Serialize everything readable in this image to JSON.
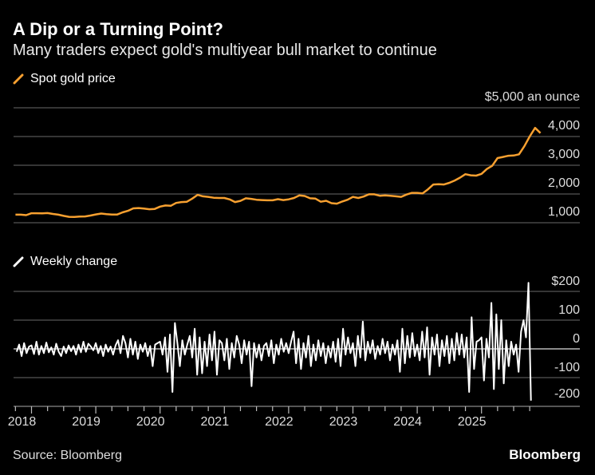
{
  "title": "A Dip or a Turning Point?",
  "subtitle": "Many traders expect gold's multiyear bull market to continue",
  "source": "Source: Bloomberg",
  "brand": "Bloomberg",
  "colors": {
    "gold": "#f7a030",
    "change": "#ffffff",
    "grid": "#555555",
    "background": "#000000"
  },
  "chart_data": [
    {
      "type": "line",
      "legend": "Spot gold price",
      "unit_label": "$5,000 an ounce",
      "ylim": [
        1000,
        5000
      ],
      "yticks": [
        1000,
        2000,
        3000,
        4000,
        5000
      ],
      "ytick_labels": [
        "1,000",
        "2,000",
        "3,000",
        "4,000",
        "$5,000 an ounce"
      ],
      "grid": true,
      "series": [
        {
          "name": "Spot gold price",
          "values_by_year_monthly": {
            "2017": [
              1280,
              1280,
              1265
            ],
            "2018": [
              1330,
              1330,
              1325,
              1335,
              1305,
              1280,
              1240,
              1205,
              1200,
              1215,
              1220,
              1250
            ],
            "2019": [
              1290,
              1320,
              1300,
              1285,
              1285,
              1360,
              1415,
              1500,
              1510,
              1495,
              1470,
              1480
            ],
            "2020": [
              1560,
              1600,
              1590,
              1690,
              1720,
              1730,
              1840,
              1970,
              1920,
              1900,
              1870,
              1860
            ],
            "2021": [
              1860,
              1810,
              1720,
              1760,
              1850,
              1830,
              1800,
              1790,
              1780,
              1780,
              1820,
              1790
            ],
            "2022": [
              1815,
              1860,
              1950,
              1930,
              1850,
              1840,
              1730,
              1765,
              1680,
              1665,
              1740,
              1800
            ],
            "2023": [
              1900,
              1860,
              1910,
              1990,
              1990,
              1940,
              1950,
              1940,
              1920,
              1900,
              1980,
              2040
            ],
            "2024": [
              2040,
              2020,
              2160,
              2330,
              2340,
              2330,
              2390,
              2470,
              2570,
              2690,
              2650,
              2640
            ],
            "2025": [
              2700,
              2870,
              2980,
              3250,
              3290,
              3330,
              3340,
              3380,
              3660,
              4000,
              4300,
              4120
            ]
          }
        }
      ]
    },
    {
      "type": "line",
      "legend": "Weekly change",
      "ylim": [
        -200,
        200
      ],
      "yticks": [
        -200,
        -100,
        0,
        100,
        200
      ],
      "ytick_labels": [
        "-200",
        "-100",
        "0",
        "100",
        "$200"
      ],
      "xtick_labels": [
        "2018",
        "2019",
        "2020",
        "2021",
        "2022",
        "2023",
        "2024",
        "2025"
      ],
      "grid": true,
      "series": [
        {
          "name": "Weekly change",
          "values_by_year": {
            "2017": [
              -10,
              15,
              -25,
              20,
              -15,
              8
            ],
            "2018": [
              12,
              -18,
              25,
              -20,
              10,
              -15,
              22,
              -12,
              5,
              -20,
              18,
              -10,
              -25,
              8,
              -15,
              12,
              -8,
              10,
              -20,
              15,
              -12,
              25,
              -10,
              18,
              8,
              -5
            ],
            "2019": [
              20,
              -15,
              10,
              -25,
              15,
              -10,
              8,
              -20,
              12,
              30,
              -15,
              45,
              20,
              -30,
              35,
              -20,
              25,
              -35,
              15,
              -10,
              20,
              -25,
              10,
              -60,
              15,
              20
            ],
            "2020": [
              25,
              -20,
              40,
              -80,
              50,
              -150,
              90,
              20,
              -60,
              30,
              -20,
              15,
              45,
              -30,
              70,
              -90,
              40,
              -85,
              25,
              -60,
              50,
              -40,
              60,
              -90,
              30,
              20
            ],
            "2021": [
              -40,
              35,
              -70,
              20,
              -30,
              45,
              15,
              -50,
              30,
              -20,
              25,
              -130,
              20,
              -30,
              15,
              -40,
              10,
              20,
              -25,
              30,
              -50,
              15,
              -20,
              35,
              -10,
              20
            ],
            "2022": [
              -15,
              25,
              60,
              -50,
              35,
              -70,
              20,
              -30,
              45,
              -60,
              15,
              -40,
              30,
              -25,
              20,
              -50,
              10,
              -30,
              25,
              -45,
              35,
              -60,
              70,
              -20,
              40,
              -15
            ],
            "2023": [
              20,
              -60,
              45,
              -30,
              95,
              -40,
              25,
              -15,
              30,
              -35,
              10,
              -20,
              35,
              -15,
              25,
              -40,
              15,
              -20,
              30,
              -80,
              70,
              -50,
              45,
              -30,
              55,
              -25
            ],
            "2024": [
              15,
              -40,
              60,
              -30,
              75,
              -90,
              40,
              -20,
              50,
              -60,
              30,
              -25,
              45,
              -50,
              35,
              -40,
              55,
              -20,
              50,
              -30,
              40,
              -150,
              110,
              -70,
              25,
              30
            ],
            "2025": [
              40,
              -110,
              35,
              -30,
              160,
              -140,
              120,
              -70,
              100,
              -120,
              30,
              -60,
              25,
              -20,
              15,
              -80,
              60,
              100,
              40,
              230,
              -180
            ]
          }
        }
      ]
    }
  ]
}
